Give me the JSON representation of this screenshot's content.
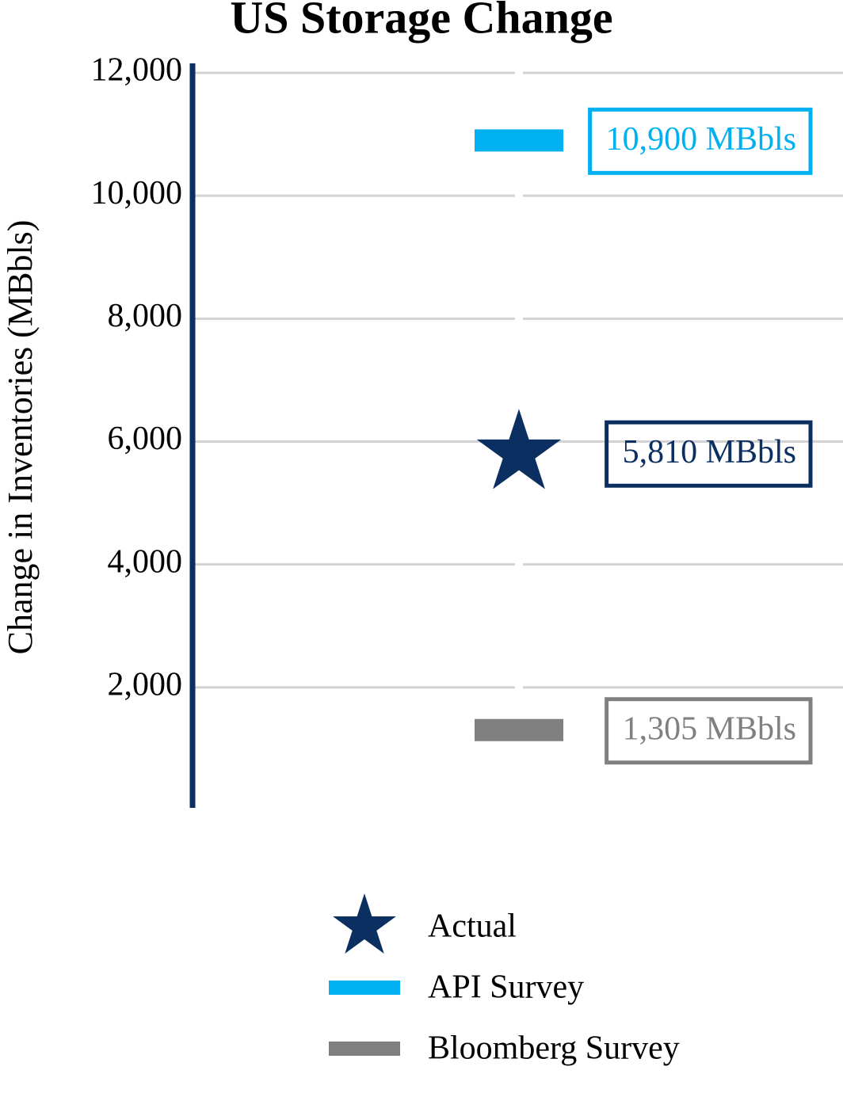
{
  "chart_data": {
    "type": "point",
    "title": "US Storage Change",
    "y_label": "Change in Inventories (MBbls)",
    "categories": [
      null
    ],
    "series": [
      {
        "name": "Actual",
        "color": "#0b2f60",
        "marker": "star",
        "values": [
          5810
        ],
        "value_labels": [
          "5,810 MBbls"
        ]
      },
      {
        "name": "API Survey",
        "color": "#00b0f0",
        "marker": "dash",
        "values": [
          10900
        ],
        "value_labels": [
          "10,900 MBbls"
        ]
      },
      {
        "name": "Bloomberg Survey",
        "color": "#808080",
        "marker": "dash",
        "values": [
          1305
        ],
        "value_labels": [
          "1,305 MBbls"
        ]
      }
    ],
    "ylim": [
      0,
      12000
    ],
    "yticks": [
      {
        "value": 2000,
        "label": "2,000"
      },
      {
        "value": 4000,
        "label": "4,000"
      },
      {
        "value": 6000,
        "label": "6,000"
      },
      {
        "value": 8000,
        "label": "8,000"
      },
      {
        "value": 10000,
        "label": "10,000"
      },
      {
        "value": 12000,
        "label": "12,000"
      }
    ],
    "grid": true
  }
}
